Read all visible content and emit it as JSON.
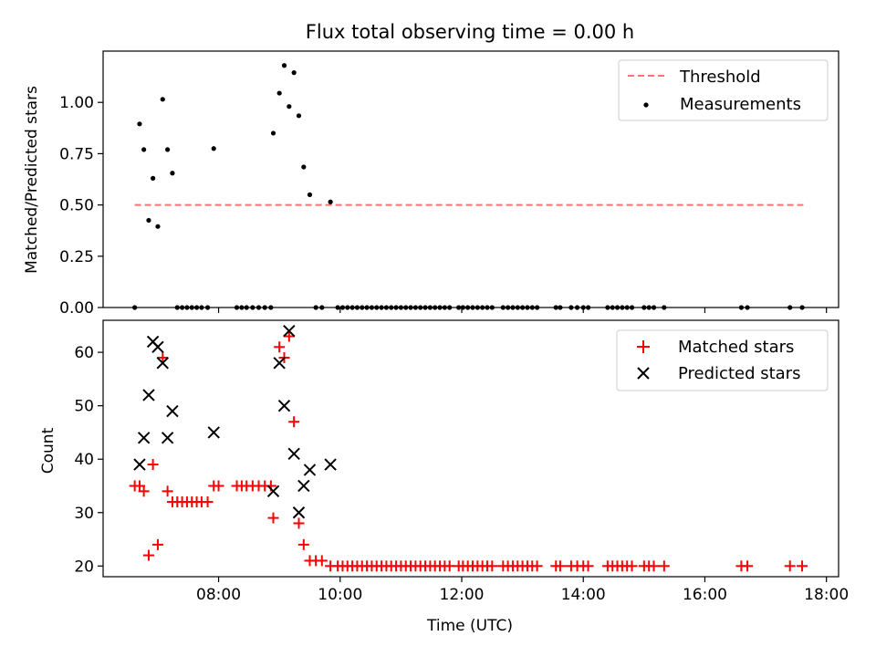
{
  "figure": {
    "title": "Flux total observing time = 0.00 h"
  },
  "chart_data": [
    {
      "type": "scatter",
      "panel": "top",
      "ylabel": "Matched/Predicted stars",
      "xlim": [
        6.1,
        18.2
      ],
      "ylim": [
        0,
        1.25
      ],
      "yticks": [
        0.0,
        0.25,
        0.5,
        0.75,
        1.0
      ],
      "ytick_labels": [
        "0.00",
        "0.25",
        "0.50",
        "0.75",
        "1.00"
      ],
      "xticks": [
        8,
        10,
        12,
        14,
        16,
        18
      ],
      "xtick_labels_visible": false,
      "legend": {
        "placement": "top-right",
        "entries": [
          "Threshold",
          "Measurements"
        ]
      },
      "threshold": {
        "name": "Threshold",
        "y": 0.5,
        "x_range": [
          6.62,
          17.62
        ],
        "color": "#ff7070",
        "style": "dashed"
      },
      "series": [
        {
          "name": "Measurements",
          "color": "#000000",
          "marker": "dot",
          "points": [
            [
              6.62,
              0.0
            ],
            [
              6.7,
              0.895
            ],
            [
              6.77,
              0.77
            ],
            [
              6.85,
              0.425
            ],
            [
              6.92,
              0.63
            ],
            [
              7.0,
              0.395
            ],
            [
              7.08,
              1.015
            ],
            [
              7.16,
              0.77
            ],
            [
              7.24,
              0.655
            ],
            [
              7.32,
              0.0
            ],
            [
              7.4,
              0.0
            ],
            [
              7.48,
              0.0
            ],
            [
              7.56,
              0.0
            ],
            [
              7.64,
              0.0
            ],
            [
              7.72,
              0.0
            ],
            [
              7.82,
              0.0
            ],
            [
              7.92,
              0.775
            ],
            [
              8.3,
              0.0
            ],
            [
              8.38,
              0.0
            ],
            [
              8.46,
              0.0
            ],
            [
              8.56,
              0.0
            ],
            [
              8.66,
              0.0
            ],
            [
              8.76,
              0.0
            ],
            [
              8.86,
              0.0
            ],
            [
              8.9,
              0.85
            ],
            [
              9.0,
              1.045
            ],
            [
              9.08,
              1.18
            ],
            [
              9.16,
              0.98
            ],
            [
              9.24,
              1.145
            ],
            [
              9.32,
              0.935
            ],
            [
              9.4,
              0.685
            ],
            [
              9.5,
              0.55
            ],
            [
              9.6,
              0.0
            ],
            [
              9.7,
              0.0
            ],
            [
              9.84,
              0.515
            ],
            [
              9.96,
              0.0
            ],
            [
              10.04,
              0.0
            ],
            [
              10.12,
              0.0
            ],
            [
              10.2,
              0.0
            ],
            [
              10.28,
              0.0
            ],
            [
              10.36,
              0.0
            ],
            [
              10.44,
              0.0
            ],
            [
              10.52,
              0.0
            ],
            [
              10.6,
              0.0
            ],
            [
              10.68,
              0.0
            ],
            [
              10.76,
              0.0
            ],
            [
              10.84,
              0.0
            ],
            [
              10.92,
              0.0
            ],
            [
              11.0,
              0.0
            ],
            [
              11.08,
              0.0
            ],
            [
              11.16,
              0.0
            ],
            [
              11.24,
              0.0
            ],
            [
              11.32,
              0.0
            ],
            [
              11.4,
              0.0
            ],
            [
              11.48,
              0.0
            ],
            [
              11.56,
              0.0
            ],
            [
              11.64,
              0.0
            ],
            [
              11.72,
              0.0
            ],
            [
              11.8,
              0.0
            ],
            [
              11.95,
              0.0
            ],
            [
              12.02,
              0.0
            ],
            [
              12.1,
              0.0
            ],
            [
              12.18,
              0.0
            ],
            [
              12.26,
              0.0
            ],
            [
              12.34,
              0.0
            ],
            [
              12.42,
              0.0
            ],
            [
              12.5,
              0.0
            ],
            [
              12.68,
              0.0
            ],
            [
              12.76,
              0.0
            ],
            [
              12.84,
              0.0
            ],
            [
              12.92,
              0.0
            ],
            [
              13.0,
              0.0
            ],
            [
              13.08,
              0.0
            ],
            [
              13.16,
              0.0
            ],
            [
              13.24,
              0.0
            ],
            [
              13.55,
              0.0
            ],
            [
              13.62,
              0.0
            ],
            [
              13.8,
              0.0
            ],
            [
              13.9,
              0.0
            ],
            [
              14.0,
              0.0
            ],
            [
              14.08,
              0.0
            ],
            [
              14.4,
              0.0
            ],
            [
              14.48,
              0.0
            ],
            [
              14.56,
              0.0
            ],
            [
              14.64,
              0.0
            ],
            [
              14.72,
              0.0
            ],
            [
              14.8,
              0.0
            ],
            [
              15.0,
              0.0
            ],
            [
              15.08,
              0.0
            ],
            [
              15.16,
              0.0
            ],
            [
              15.33,
              0.0
            ],
            [
              16.6,
              0.0
            ],
            [
              16.7,
              0.0
            ],
            [
              17.4,
              0.0
            ],
            [
              17.6,
              0.0
            ]
          ]
        }
      ]
    },
    {
      "type": "scatter",
      "panel": "bottom",
      "xlabel": "Time (UTC)",
      "ylabel": "Count",
      "xlim": [
        6.1,
        18.2
      ],
      "ylim": [
        18,
        66
      ],
      "yticks": [
        20,
        30,
        40,
        50,
        60
      ],
      "ytick_labels": [
        "20",
        "30",
        "40",
        "50",
        "60"
      ],
      "xticks": [
        8,
        10,
        12,
        14,
        16,
        18
      ],
      "xtick_labels": [
        "08:00",
        "10:00",
        "12:00",
        "14:00",
        "16:00",
        "18:00"
      ],
      "legend": {
        "placement": "top-right",
        "entries": [
          "Matched stars",
          "Predicted stars"
        ]
      },
      "series": [
        {
          "name": "Matched stars",
          "color": "#ff0000",
          "marker": "plus",
          "points": [
            [
              6.62,
              35
            ],
            [
              6.7,
              35
            ],
            [
              6.77,
              34
            ],
            [
              6.85,
              22
            ],
            [
              6.92,
              39
            ],
            [
              7.0,
              24
            ],
            [
              7.08,
              59
            ],
            [
              7.16,
              34
            ],
            [
              7.24,
              32
            ],
            [
              7.32,
              32
            ],
            [
              7.4,
              32
            ],
            [
              7.48,
              32
            ],
            [
              7.56,
              32
            ],
            [
              7.64,
              32
            ],
            [
              7.72,
              32
            ],
            [
              7.82,
              32
            ],
            [
              7.92,
              35
            ],
            [
              8.0,
              35
            ],
            [
              8.3,
              35
            ],
            [
              8.38,
              35
            ],
            [
              8.46,
              35
            ],
            [
              8.56,
              35
            ],
            [
              8.66,
              35
            ],
            [
              8.76,
              35
            ],
            [
              8.86,
              35
            ],
            [
              8.9,
              29
            ],
            [
              9.0,
              61
            ],
            [
              9.08,
              59
            ],
            [
              9.16,
              63
            ],
            [
              9.24,
              47
            ],
            [
              9.32,
              28
            ],
            [
              9.4,
              24
            ],
            [
              9.5,
              21
            ],
            [
              9.6,
              21
            ],
            [
              9.7,
              21
            ],
            [
              9.84,
              20
            ],
            [
              9.96,
              20
            ],
            [
              10.04,
              20
            ],
            [
              10.12,
              20
            ],
            [
              10.2,
              20
            ],
            [
              10.28,
              20
            ],
            [
              10.36,
              20
            ],
            [
              10.44,
              20
            ],
            [
              10.52,
              20
            ],
            [
              10.6,
              20
            ],
            [
              10.68,
              20
            ],
            [
              10.76,
              20
            ],
            [
              10.84,
              20
            ],
            [
              10.92,
              20
            ],
            [
              11.0,
              20
            ],
            [
              11.08,
              20
            ],
            [
              11.16,
              20
            ],
            [
              11.24,
              20
            ],
            [
              11.32,
              20
            ],
            [
              11.4,
              20
            ],
            [
              11.48,
              20
            ],
            [
              11.56,
              20
            ],
            [
              11.64,
              20
            ],
            [
              11.72,
              20
            ],
            [
              11.8,
              20
            ],
            [
              11.95,
              20
            ],
            [
              12.02,
              20
            ],
            [
              12.1,
              20
            ],
            [
              12.18,
              20
            ],
            [
              12.26,
              20
            ],
            [
              12.34,
              20
            ],
            [
              12.42,
              20
            ],
            [
              12.5,
              20
            ],
            [
              12.68,
              20
            ],
            [
              12.76,
              20
            ],
            [
              12.84,
              20
            ],
            [
              12.92,
              20
            ],
            [
              13.0,
              20
            ],
            [
              13.08,
              20
            ],
            [
              13.16,
              20
            ],
            [
              13.24,
              20
            ],
            [
              13.55,
              20
            ],
            [
              13.62,
              20
            ],
            [
              13.8,
              20
            ],
            [
              13.9,
              20
            ],
            [
              14.0,
              20
            ],
            [
              14.08,
              20
            ],
            [
              14.4,
              20
            ],
            [
              14.48,
              20
            ],
            [
              14.56,
              20
            ],
            [
              14.64,
              20
            ],
            [
              14.72,
              20
            ],
            [
              14.8,
              20
            ],
            [
              15.0,
              20
            ],
            [
              15.08,
              20
            ],
            [
              15.16,
              20
            ],
            [
              15.33,
              20
            ],
            [
              16.6,
              20
            ],
            [
              16.7,
              20
            ],
            [
              17.4,
              20
            ],
            [
              17.6,
              20
            ]
          ]
        },
        {
          "name": "Predicted stars",
          "color": "#000000",
          "marker": "x",
          "points": [
            [
              6.7,
              39
            ],
            [
              6.77,
              44
            ],
            [
              6.85,
              52
            ],
            [
              6.92,
              62
            ],
            [
              7.0,
              61
            ],
            [
              7.08,
              58
            ],
            [
              7.16,
              44
            ],
            [
              7.24,
              49
            ],
            [
              7.92,
              45
            ],
            [
              8.9,
              34
            ],
            [
              9.0,
              58
            ],
            [
              9.08,
              50
            ],
            [
              9.16,
              64
            ],
            [
              9.24,
              41
            ],
            [
              9.32,
              30
            ],
            [
              9.4,
              35
            ],
            [
              9.5,
              38
            ],
            [
              9.84,
              39
            ]
          ]
        }
      ]
    }
  ]
}
